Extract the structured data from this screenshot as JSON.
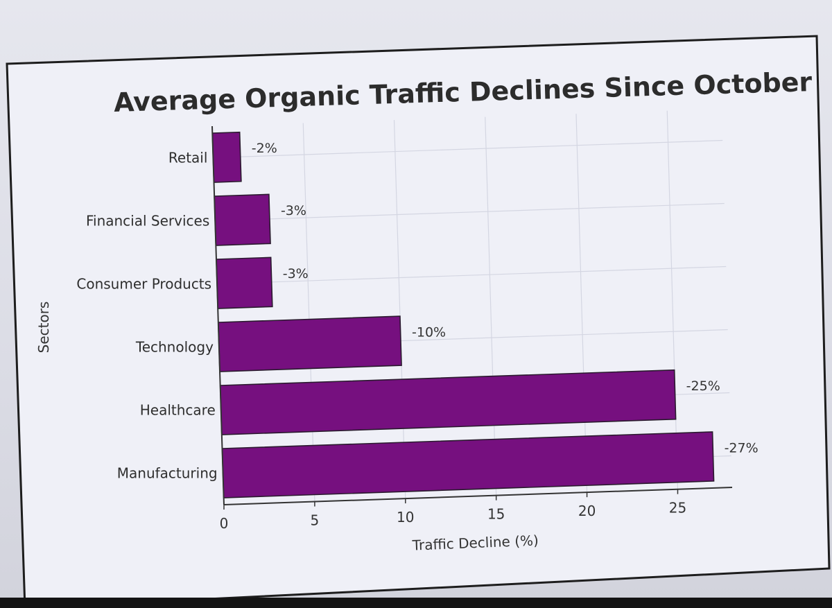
{
  "chart_data": {
    "type": "bar",
    "orientation": "horizontal",
    "title": "Average Organic Traffic Declines Since October",
    "xlabel": "Traffic Decline (%)",
    "ylabel": "Sectors",
    "categories": [
      "Retail",
      "Financial Services",
      "Consumer Products",
      "Technology",
      "Healthcare",
      "Manufacturing"
    ],
    "values": [
      1.5,
      3,
      3,
      10,
      25,
      27
    ],
    "data_labels": [
      "-2%",
      "-3%",
      "-3%",
      "-10%",
      "-25%",
      "-27%"
    ],
    "xlim": [
      0,
      28
    ],
    "xticks": [
      "0",
      "5",
      "10",
      "15",
      "20",
      "25"
    ],
    "grid": true,
    "bar_color": "#76107f"
  }
}
